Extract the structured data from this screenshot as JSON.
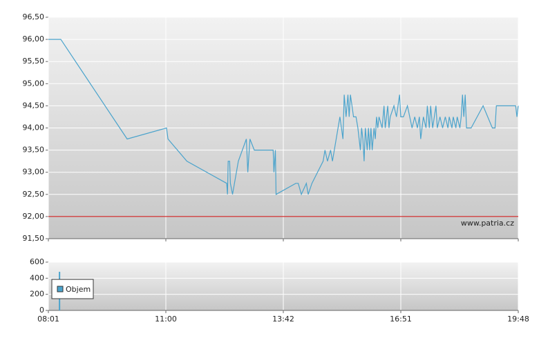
{
  "chart_data": [
    {
      "type": "line",
      "color": "#4aa3cc",
      "grid": true,
      "x": [
        "08:01",
        "08:20",
        "10:01",
        "11:01",
        "11:03",
        "11:29",
        "12:24",
        "12:25",
        "12:26",
        "12:28",
        "12:29",
        "12:32",
        "12:40",
        "12:51",
        "12:53",
        "12:56",
        "13:02",
        "13:28",
        "13:29",
        "13:31",
        "13:32",
        "14:02",
        "14:06",
        "14:11",
        "14:19",
        "14:22",
        "14:28",
        "14:46",
        "14:49",
        "14:53",
        "14:58",
        "15:01",
        "15:13",
        "15:18",
        "15:20",
        "15:23",
        "15:26",
        "15:28",
        "15:30",
        "15:35",
        "15:39",
        "15:42",
        "15:44",
        "15:46",
        "15:48",
        "15:50",
        "15:52",
        "15:54",
        "15:57",
        "15:59",
        "16:01",
        "16:03",
        "16:05",
        "16:08",
        "16:10",
        "16:12",
        "16:14",
        "16:16",
        "16:21",
        "16:24",
        "16:26",
        "16:30",
        "16:32",
        "16:34",
        "16:40",
        "16:44",
        "16:49",
        "16:51",
        "16:55",
        "17:01",
        "17:08",
        "17:12",
        "17:16",
        "17:19",
        "17:21",
        "17:25",
        "17:29",
        "17:31",
        "17:34",
        "17:36",
        "17:39",
        "17:44",
        "17:46",
        "17:50",
        "17:54",
        "17:58",
        "18:02",
        "18:04",
        "18:08",
        "18:10",
        "18:14",
        "18:16",
        "18:20",
        "18:22",
        "18:24",
        "18:26",
        "18:28",
        "18:30",
        "18:37",
        "18:55",
        "19:09",
        "19:13",
        "19:15",
        "19:44",
        "19:46",
        "19:48"
      ],
      "values": [
        96,
        96,
        93.75,
        94,
        93.75,
        93.25,
        92.75,
        92.5,
        93.25,
        93.25,
        92.75,
        92.5,
        93.25,
        93.75,
        93,
        93.75,
        93.5,
        93.5,
        93,
        93.5,
        92.5,
        92.75,
        92.75,
        92.5,
        92.75,
        92.5,
        92.75,
        93.25,
        93.5,
        93.25,
        93.5,
        93.25,
        94.25,
        93.75,
        94.75,
        94.25,
        94.75,
        94.25,
        94.75,
        94.25,
        94.25,
        94,
        93.75,
        93.5,
        94,
        93.75,
        93.25,
        94,
        93.5,
        94,
        93.5,
        94,
        93.5,
        94,
        93.75,
        94.25,
        94,
        94.25,
        94,
        94.5,
        94,
        94.5,
        94,
        94.25,
        94.5,
        94.25,
        94.75,
        94.25,
        94.25,
        94.5,
        94,
        94.25,
        94,
        94.25,
        93.75,
        94.25,
        94,
        94.5,
        94,
        94.5,
        94,
        94.5,
        94,
        94.25,
        94,
        94.25,
        94,
        94.25,
        94,
        94.25,
        94,
        94.25,
        94,
        94.25,
        94.75,
        94.25,
        94.75,
        94,
        94,
        94.5,
        94,
        94,
        94.5,
        94.5,
        94.25,
        94.5
      ],
      "ylim": [
        91.5,
        96.5
      ],
      "yticks": [
        {
          "value": 91.5,
          "label": "91,50"
        },
        {
          "value": 92,
          "label": "92,00"
        },
        {
          "value": 92.5,
          "label": "92,50"
        },
        {
          "value": 93,
          "label": "93,00"
        },
        {
          "value": 93.5,
          "label": "93,50"
        },
        {
          "value": 94,
          "label": "94,00"
        },
        {
          "value": 94.5,
          "label": "94,50"
        },
        {
          "value": 95,
          "label": "95,00"
        },
        {
          "value": 95.5,
          "label": "95,50"
        },
        {
          "value": 96,
          "label": "96,00"
        },
        {
          "value": 96.5,
          "label": "96,50"
        }
      ],
      "xticks": [
        "08:01",
        "11:00",
        "13:42",
        "16:51",
        "19:48"
      ],
      "reference_line": 92,
      "reference_color": "#cc0000",
      "annotation": "www.patria.cz"
    },
    {
      "type": "bar",
      "grid": true,
      "legend": "upper left",
      "x": [
        "08:18"
      ],
      "series": [
        {
          "name": "Objem",
          "color": "#4aa3cc",
          "values": [
            480
          ]
        }
      ],
      "ylim": [
        0,
        600
      ],
      "yticks": [
        0,
        200,
        400,
        600
      ],
      "xticks": [
        "08:01",
        "11:00",
        "13:42",
        "16:51",
        "19:48"
      ]
    }
  ]
}
